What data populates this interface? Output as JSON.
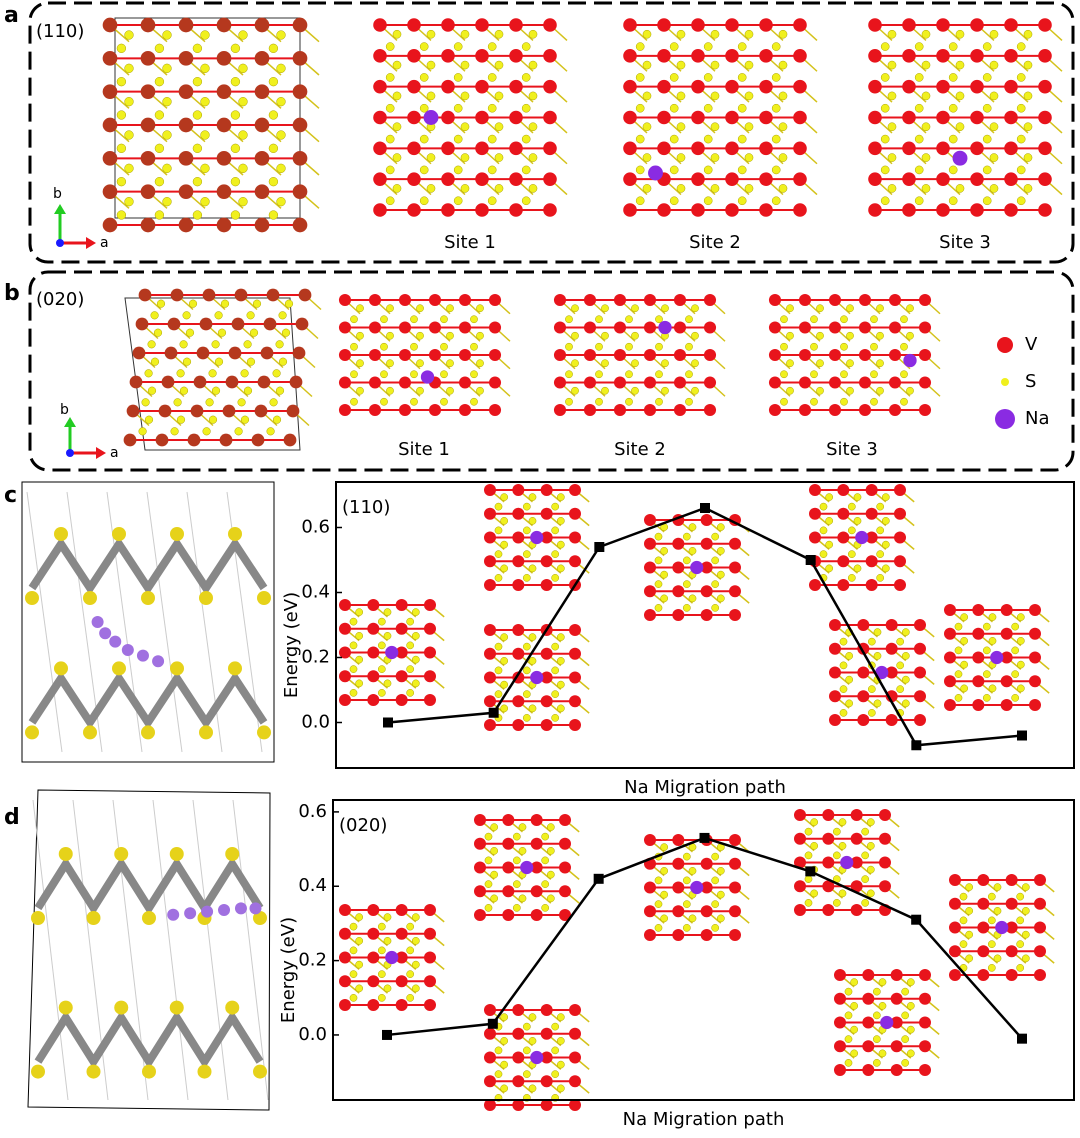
{
  "panels": {
    "a": {
      "label": "a",
      "plane": "(110)",
      "axes": [
        "b",
        "a"
      ],
      "sites": [
        "Site 1",
        "Site 2",
        "Site 3"
      ]
    },
    "b": {
      "label": "b",
      "plane": "(020)",
      "axes": [
        "b",
        "a"
      ],
      "sites": [
        "Site 1",
        "Site 2",
        "Site 3"
      ]
    },
    "c": {
      "label": "c"
    },
    "d": {
      "label": "d"
    }
  },
  "legend": [
    {
      "label": "V",
      "color": "#e8141c"
    },
    {
      "label": "S",
      "color": "#f0f01e"
    },
    {
      "label": "Na",
      "color": "#8a2be2"
    }
  ],
  "chart_data": [
    {
      "type": "line",
      "title": "(110)",
      "y_label": "Energy (eV)",
      "x_label": "Na Migration path",
      "values": [
        0.0,
        0.03,
        0.54,
        0.66,
        0.5,
        -0.07,
        -0.04
      ],
      "color": "#000000",
      "ylim": [
        -0.14,
        0.74
      ],
      "yticks": [
        {
          "value": 0,
          "label": "0.0"
        },
        {
          "value": 0.2,
          "label": "0.2"
        },
        {
          "value": 0.4,
          "label": "0.4"
        },
        {
          "value": 0.6,
          "label": "0.6"
        }
      ]
    },
    {
      "type": "line",
      "title": "(020)",
      "y_label": "Energy (eV)",
      "x_label": "Na Migration path",
      "values": [
        0.0,
        0.03,
        0.42,
        0.53,
        0.44,
        0.31,
        -0.01
      ],
      "color": "#000000",
      "ylim": [
        -0.175,
        0.632
      ],
      "yticks": [
        {
          "value": 0,
          "label": "0.0"
        },
        {
          "value": 0.2,
          "label": "0.2"
        },
        {
          "value": 0.4,
          "label": "0.4"
        },
        {
          "value": 0.6,
          "label": "0.6"
        }
      ]
    }
  ]
}
